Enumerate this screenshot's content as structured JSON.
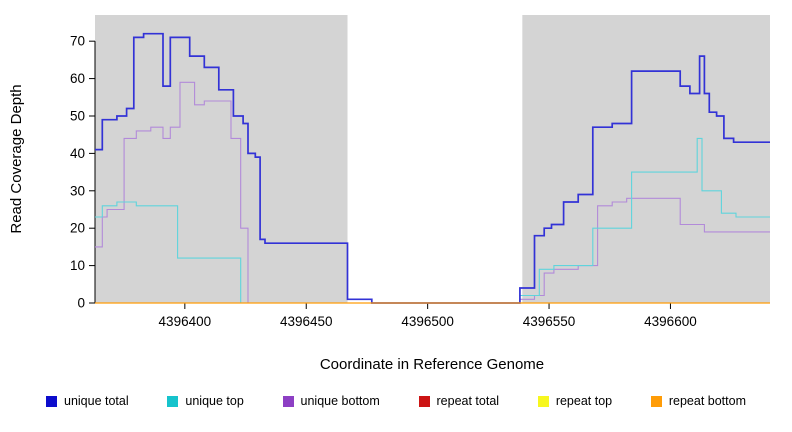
{
  "chart_data": {
    "type": "line",
    "line_style": "step-after",
    "title": "",
    "xlabel": "Coordinate in Reference Genome",
    "ylabel": "Read Coverage Depth",
    "xlim": [
      4396363,
      4396641
    ],
    "ylim": [
      0,
      77
    ],
    "x_ticks": [
      4396400,
      4396450,
      4396500,
      4396550,
      4396600
    ],
    "y_ticks": [
      0,
      10,
      20,
      30,
      40,
      50,
      60,
      70
    ],
    "grid": false,
    "legend_position": "bottom",
    "shading": {
      "color": "#d4d4d4",
      "regions": [
        [
          4396363,
          4396467
        ],
        [
          4396539,
          4396641
        ]
      ]
    },
    "series": [
      {
        "name": "unique total",
        "color": "#3232d6",
        "width": 1.7,
        "z": 3,
        "points": [
          [
            4396363,
            41
          ],
          [
            4396366,
            49
          ],
          [
            4396372,
            50
          ],
          [
            4396376,
            52
          ],
          [
            4396379,
            71
          ],
          [
            4396383,
            72
          ],
          [
            4396391,
            58
          ],
          [
            4396394,
            71
          ],
          [
            4396402,
            66
          ],
          [
            4396408,
            63
          ],
          [
            4396414,
            57
          ],
          [
            4396420,
            50
          ],
          [
            4396424,
            48
          ],
          [
            4396426,
            40
          ],
          [
            4396429,
            39
          ],
          [
            4396431,
            17
          ],
          [
            4396433,
            16
          ],
          [
            4396467,
            1
          ],
          [
            4396477,
            0
          ],
          [
            4396538,
            4
          ],
          [
            4396544,
            18
          ],
          [
            4396548,
            20
          ],
          [
            4396551,
            21
          ],
          [
            4396556,
            27
          ],
          [
            4396562,
            29
          ],
          [
            4396568,
            47
          ],
          [
            4396576,
            48
          ],
          [
            4396584,
            62
          ],
          [
            4396604,
            58
          ],
          [
            4396608,
            56
          ],
          [
            4396612,
            66
          ],
          [
            4396614,
            56
          ],
          [
            4396616,
            51
          ],
          [
            4396619,
            50
          ],
          [
            4396622,
            44
          ],
          [
            4396626,
            43
          ]
        ]
      },
      {
        "name": "unique top",
        "color": "#5fd4dc",
        "width": 1.1,
        "z": 2,
        "points": [
          [
            4396363,
            23
          ],
          [
            4396366,
            26
          ],
          [
            4396372,
            27
          ],
          [
            4396380,
            26
          ],
          [
            4396397,
            12
          ],
          [
            4396423,
            0
          ],
          [
            4396538,
            2
          ],
          [
            4396546,
            9
          ],
          [
            4396552,
            10
          ],
          [
            4396568,
            20
          ],
          [
            4396584,
            35
          ],
          [
            4396611,
            44
          ],
          [
            4396613,
            30
          ],
          [
            4396621,
            24
          ],
          [
            4396627,
            23
          ]
        ]
      },
      {
        "name": "unique bottom",
        "color": "#b28ad9",
        "width": 1.1,
        "z": 1,
        "points": [
          [
            4396363,
            15
          ],
          [
            4396366,
            23
          ],
          [
            4396368,
            25
          ],
          [
            4396375,
            44
          ],
          [
            4396380,
            46
          ],
          [
            4396386,
            47
          ],
          [
            4396391,
            44
          ],
          [
            4396394,
            47
          ],
          [
            4396398,
            59
          ],
          [
            4396404,
            53
          ],
          [
            4396408,
            54
          ],
          [
            4396419,
            44
          ],
          [
            4396423,
            20
          ],
          [
            4396426,
            0
          ],
          [
            4396538,
            1
          ],
          [
            4396544,
            2
          ],
          [
            4396548,
            8
          ],
          [
            4396552,
            9
          ],
          [
            4396562,
            10
          ],
          [
            4396570,
            26
          ],
          [
            4396576,
            27
          ],
          [
            4396582,
            28
          ],
          [
            4396604,
            21
          ],
          [
            4396614,
            19
          ]
        ]
      },
      {
        "name": "repeat total",
        "color": "#cc1414",
        "width": 1.1,
        "z": 4,
        "points": [
          [
            4396363,
            0
          ]
        ]
      },
      {
        "name": "repeat top",
        "color": "#f7f71e",
        "width": 1.1,
        "z": 5,
        "points": [
          [
            4396363,
            0
          ]
        ]
      },
      {
        "name": "repeat bottom",
        "color": "#ff9c07",
        "width": 1.3,
        "z": 6,
        "points": [
          [
            4396363,
            0
          ]
        ]
      }
    ]
  },
  "legend": {
    "items": [
      {
        "label": "unique total",
        "color": "#0d0dcc"
      },
      {
        "label": "unique top",
        "color": "#16c3cc"
      },
      {
        "label": "unique bottom",
        "color": "#8d3fc4"
      },
      {
        "label": "repeat total",
        "color": "#cc1414"
      },
      {
        "label": "repeat top",
        "color": "#f7f71e"
      },
      {
        "label": "repeat bottom",
        "color": "#ff9c07"
      }
    ]
  }
}
